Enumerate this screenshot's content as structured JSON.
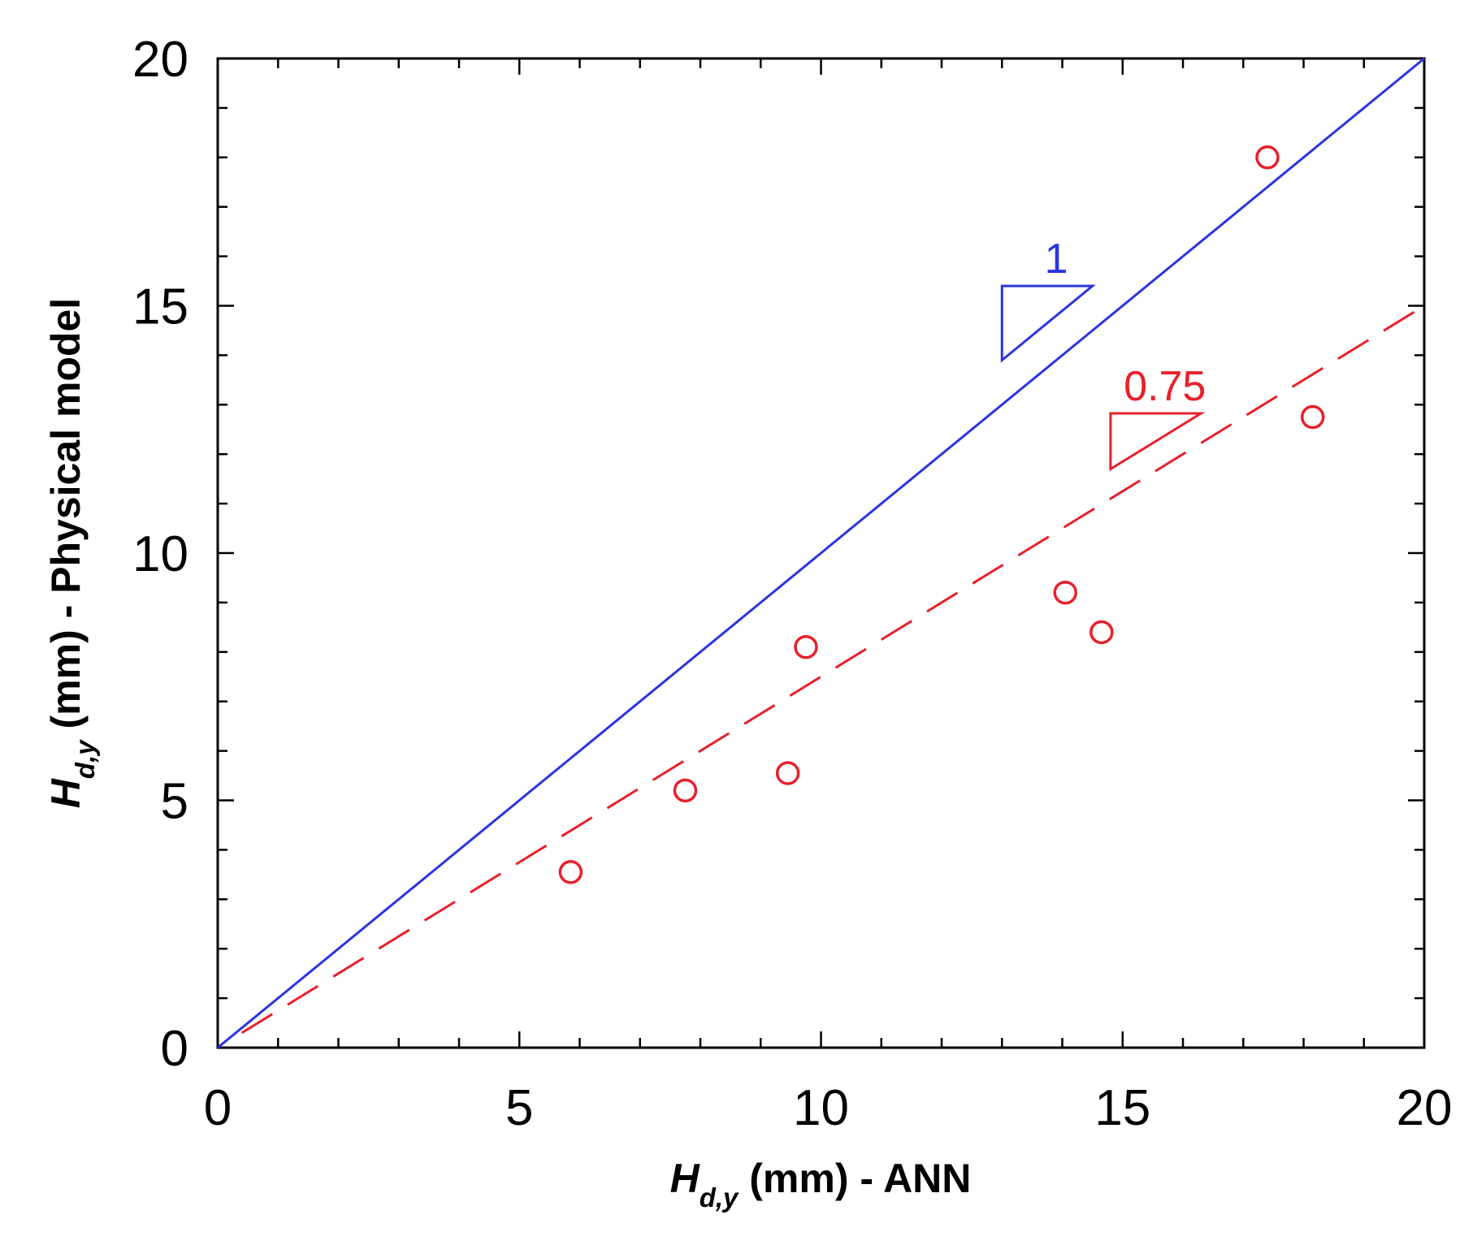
{
  "chart_data": {
    "type": "scatter",
    "title": "",
    "xlabel": {
      "var": "H",
      "sub": "d,y",
      "text": " (mm) - ANN"
    },
    "ylabel": {
      "var": "H",
      "sub": "d,y",
      "text": " (mm) - Physical model"
    },
    "xlim": [
      0,
      20
    ],
    "ylim": [
      0,
      20
    ],
    "xticks": [
      "0",
      "5",
      "10",
      "15",
      "20"
    ],
    "yticks": [
      "0",
      "5",
      "10",
      "15",
      "20"
    ],
    "grid": false,
    "points": {
      "color": "#e8202a",
      "x": [
        5.85,
        7.75,
        9.45,
        9.75,
        14.05,
        14.65,
        17.4,
        18.15
      ],
      "y": [
        3.55,
        5.2,
        5.55,
        8.1,
        9.2,
        8.4,
        18.0,
        12.75
      ]
    },
    "lines": [
      {
        "style": "solid",
        "color": "#2a35e0",
        "x": [
          0,
          20
        ],
        "y": [
          0,
          20
        ],
        "slope_label": "1"
      },
      {
        "style": "dashed",
        "color": "#e8202a",
        "x": [
          0.4,
          20
        ],
        "y": [
          0.3,
          15
        ],
        "slope_label": "0.75"
      }
    ]
  }
}
